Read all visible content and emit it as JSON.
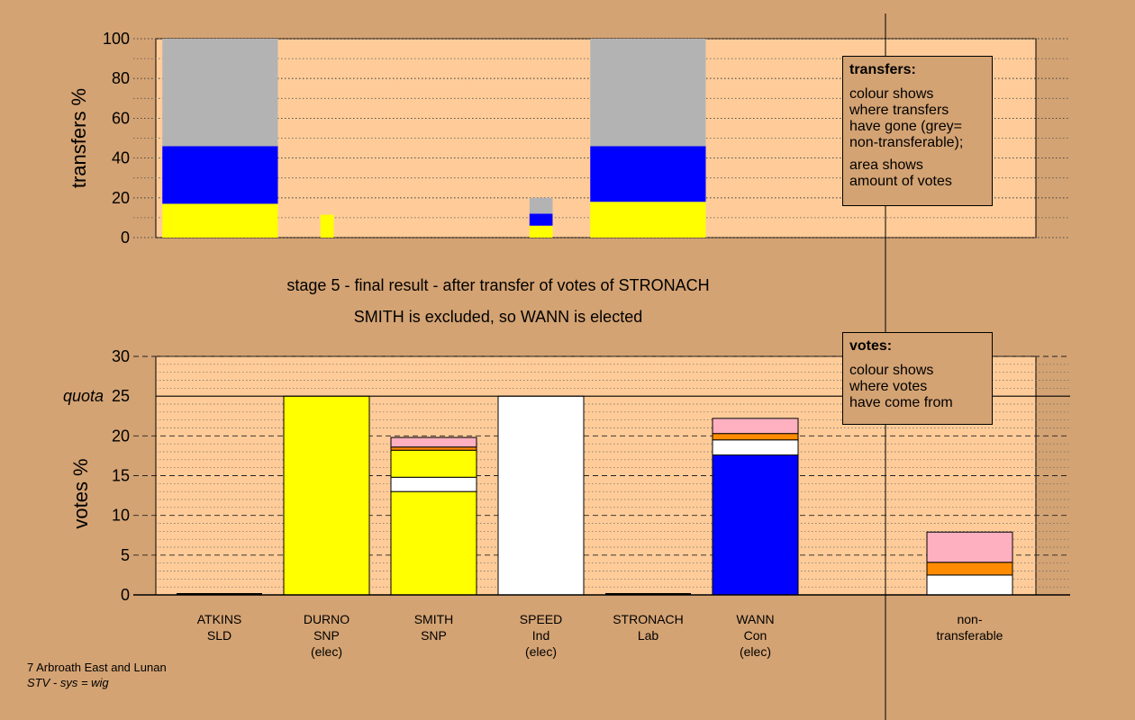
{
  "chart_data": [
    {
      "type": "bar",
      "stacked": true,
      "ylabel": "transfers %",
      "ylim": [
        0,
        100
      ],
      "yticks": [
        0,
        20,
        40,
        60,
        80,
        100
      ],
      "grid": true,
      "bars": [
        {
          "candidate": "ATKINS",
          "segments": [
            {
              "color": "#ffff00",
              "value": 17
            },
            {
              "color": "#0000ff",
              "value": 29
            },
            {
              "color": "#b3b3b3",
              "value": 54
            }
          ]
        },
        {
          "candidate": "DURNO",
          "segments": [
            {
              "color": "#ffff00",
              "value": 11.5
            }
          ]
        },
        {
          "candidate": "SMITH",
          "segments": []
        },
        {
          "candidate": "SPEED",
          "segments": [
            {
              "color": "#ffff00",
              "value": 6
            },
            {
              "color": "#0000ff",
              "value": 6
            },
            {
              "color": "#b3b3b3",
              "value": 8
            }
          ]
        },
        {
          "candidate": "STRONACH",
          "segments": [
            {
              "color": "#ffff00",
              "value": 18
            },
            {
              "color": "#0000ff",
              "value": 28
            },
            {
              "color": "#b3b3b3",
              "value": 54
            }
          ]
        },
        {
          "candidate": "WANN",
          "segments": []
        },
        {
          "candidate": "non-transferable",
          "segments": []
        }
      ]
    },
    {
      "type": "bar",
      "stacked": true,
      "ylabel": "votes %",
      "ylim": [
        0,
        30
      ],
      "yticks": [
        0,
        5,
        10,
        15,
        20,
        25,
        30
      ],
      "quota": 25,
      "quota_label": "quota",
      "grid": true,
      "categories": [
        {
          "name": "ATKINS",
          "party": "SLD",
          "note": ""
        },
        {
          "name": "DURNO",
          "party": "SNP",
          "note": "(elec)"
        },
        {
          "name": "SMITH",
          "party": "SNP",
          "note": ""
        },
        {
          "name": "SPEED",
          "party": "Ind",
          "note": "(elec)"
        },
        {
          "name": "STRONACH",
          "party": "Lab",
          "note": ""
        },
        {
          "name": "WANN",
          "party": "Con",
          "note": "(elec)"
        },
        {
          "name": "",
          "party": "",
          "note": ""
        },
        {
          "name": "non-",
          "party": "transferable",
          "note": ""
        }
      ],
      "bars": [
        {
          "candidate": "ATKINS",
          "segments": []
        },
        {
          "candidate": "DURNO",
          "segments": [
            {
              "color": "#ffff00",
              "value": 25
            }
          ]
        },
        {
          "candidate": "SMITH",
          "segments": [
            {
              "color": "#ffff00",
              "value": 13
            },
            {
              "color": "#ffffff",
              "value": 1.8
            },
            {
              "color": "#ffff00",
              "value": 3.4
            },
            {
              "color": "#ff8c00",
              "value": 0.4
            },
            {
              "color": "#ffb0c0",
              "value": 1.2
            }
          ]
        },
        {
          "candidate": "SPEED",
          "segments": [
            {
              "color": "#ffffff",
              "value": 25
            }
          ]
        },
        {
          "candidate": "STRONACH",
          "segments": []
        },
        {
          "candidate": "WANN",
          "segments": [
            {
              "color": "#0000ff",
              "value": 17.6
            },
            {
              "color": "#ffffff",
              "value": 1.9
            },
            {
              "color": "#ff8c00",
              "value": 0.8
            },
            {
              "color": "#ffb0c0",
              "value": 1.9
            }
          ]
        },
        {
          "candidate": "",
          "segments": []
        },
        {
          "candidate": "non-transferable",
          "segments": [
            {
              "color": "#ffffff",
              "value": 2.5
            },
            {
              "color": "#ff8c00",
              "value": 1.6
            },
            {
              "color": "#ffb0c0",
              "value": 3.8
            }
          ]
        }
      ]
    }
  ],
  "captions": {
    "line1": "stage 5 - final result - after transfer of votes of STRONACH",
    "line2": "SMITH is excluded, so WANN is elected"
  },
  "transfers_box": {
    "title": "transfers:",
    "lines_a": [
      "colour shows",
      "where transfers",
      "have gone (grey=",
      "non-transferable);"
    ],
    "lines_b": [
      "area shows",
      "amount of votes"
    ]
  },
  "votes_box": {
    "title": "votes:",
    "lines": [
      "colour shows",
      "where votes",
      "have come from"
    ]
  },
  "footer": {
    "line1": "7 Arbroath East and Lunan",
    "line2": "STV - sys = wig"
  },
  "colors": {
    "background": "#d4a373",
    "plot_area": "#ffcc99",
    "yellow": "#ffff00",
    "blue": "#0000ff",
    "grey": "#b3b3b3",
    "white": "#ffffff",
    "orange": "#ff8c00",
    "pink": "#ffb0c0"
  }
}
